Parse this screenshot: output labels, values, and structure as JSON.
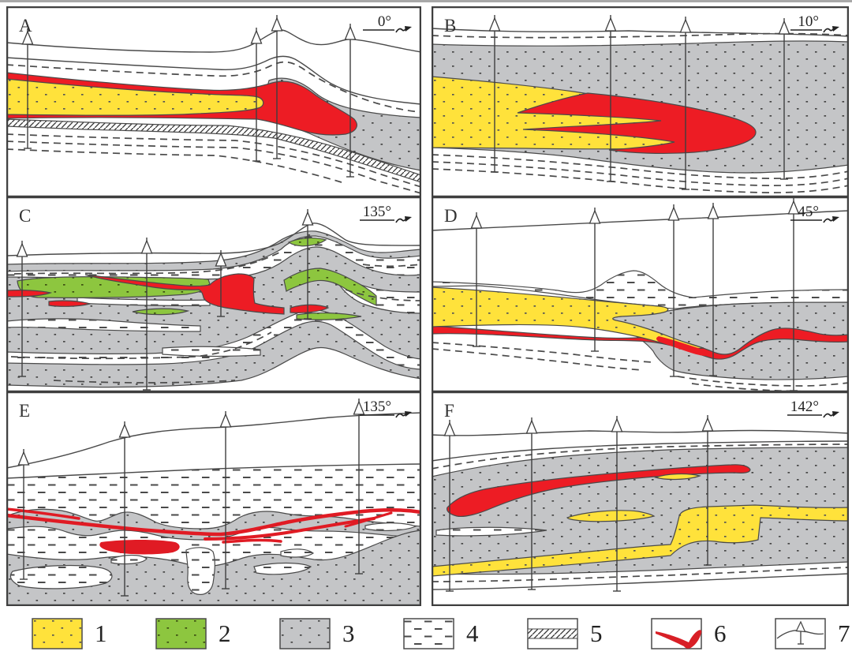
{
  "figure": {
    "description": "Six geological cross sections A-F with legend"
  },
  "panels": [
    {
      "label": "A",
      "azimuth": "0°"
    },
    {
      "label": "B",
      "azimuth": "10°"
    },
    {
      "label": "C",
      "azimuth": "135°"
    },
    {
      "label": "D",
      "azimuth": "45°"
    },
    {
      "label": "E",
      "azimuth": "135°"
    },
    {
      "label": "F",
      "azimuth": "142°"
    }
  ],
  "legend": {
    "items": [
      {
        "number": "1",
        "name": "yellow-dotted-unit"
      },
      {
        "number": "2",
        "name": "green-dotted-unit"
      },
      {
        "number": "3",
        "name": "gray-dotted-unit"
      },
      {
        "number": "4",
        "name": "dashed-unit"
      },
      {
        "number": "5",
        "name": "hatched-unit"
      },
      {
        "number": "6",
        "name": "red-ore-body"
      },
      {
        "number": "7",
        "name": "drillhole-on-surface"
      }
    ]
  },
  "colors": {
    "yellow": "#ffe23b",
    "green": "#8dc63f",
    "gray": "#c4c5c7",
    "red": "#ed1c24",
    "line": "#4a4a4a"
  }
}
